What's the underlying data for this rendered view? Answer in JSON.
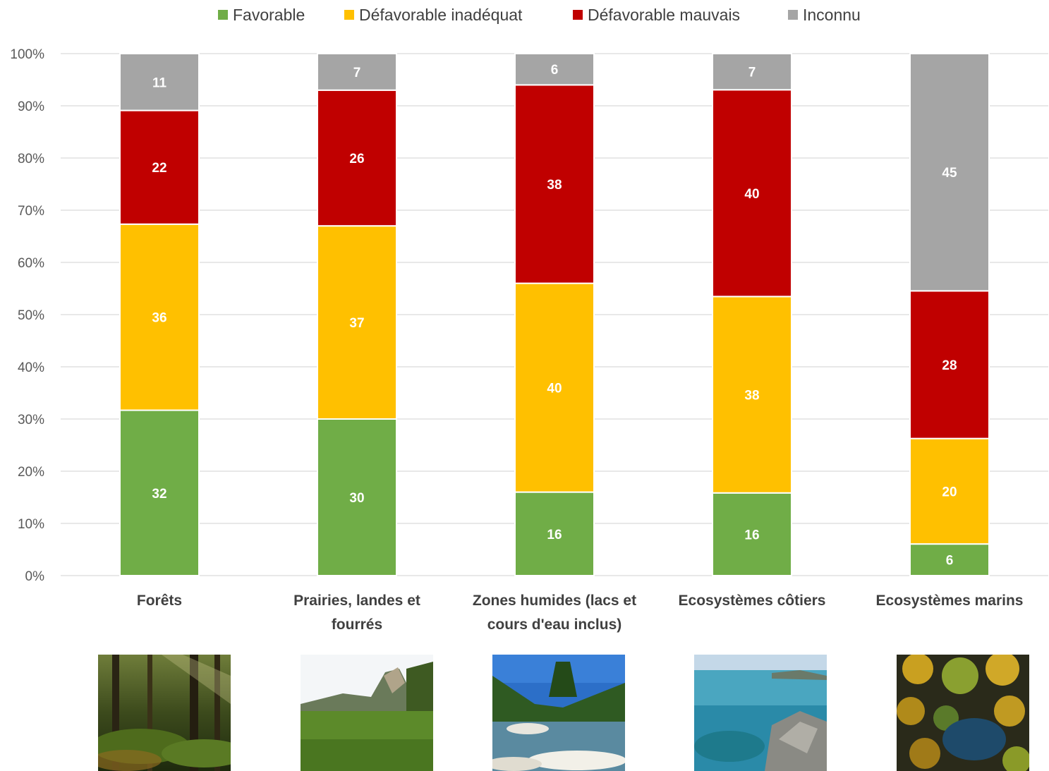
{
  "chart_data": {
    "type": "bar",
    "stacked": true,
    "percent_scale": true,
    "categories": [
      "Forêts",
      "Prairies, landes et fourrés",
      "Zones humides (lacs et cours d'eau inclus)",
      "Ecosystèmes côtiers",
      "Ecosystèmes marins"
    ],
    "series": [
      {
        "name": "Favorable",
        "color": "#70ad47",
        "values": [
          32,
          30,
          16,
          16,
          6
        ]
      },
      {
        "name": "Défavorable inadéquat",
        "color": "#ffc000",
        "values": [
          36,
          37,
          40,
          38,
          20
        ]
      },
      {
        "name": "Défavorable mauvais",
        "color": "#c00000",
        "values": [
          22,
          26,
          38,
          40,
          28
        ]
      },
      {
        "name": "Inconnu",
        "color": "#a5a5a5",
        "values": [
          11,
          7,
          6,
          7,
          45
        ]
      }
    ],
    "y_ticks": [
      "0%",
      "10%",
      "20%",
      "30%",
      "40%",
      "50%",
      "60%",
      "70%",
      "80%",
      "90%",
      "100%"
    ],
    "ylim": [
      0,
      100
    ],
    "legend_position": "top",
    "grid": true,
    "data_labels": true
  },
  "photos": [
    {
      "category": "Forêts",
      "scene": "forest-photo"
    },
    {
      "category": "Prairies, landes et fourrés",
      "scene": "meadow-photo"
    },
    {
      "category": "Zones humides (lacs et cours d'eau inclus)",
      "scene": "river-photo"
    },
    {
      "category": "Ecosystèmes côtiers",
      "scene": "coast-photo"
    },
    {
      "category": "Ecosystèmes marins",
      "scene": "marine-photo"
    }
  ]
}
